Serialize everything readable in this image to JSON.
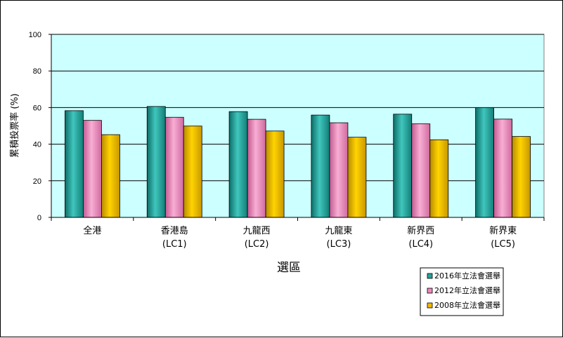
{
  "chart_data": {
    "type": "bar",
    "xlabel": "選區",
    "ylabel": "累積投票率 (%)",
    "ylim": [
      0,
      100
    ],
    "yticks": [
      0,
      20,
      40,
      60,
      80,
      100
    ],
    "grid": true,
    "legend_position": "bottom-right",
    "plot_background": "#ccffff",
    "categories": [
      {
        "line1": "全港",
        "line2": ""
      },
      {
        "line1": "香港島",
        "line2": "(LC1)"
      },
      {
        "line1": "九龍西",
        "line2": "(LC2)"
      },
      {
        "line1": "九龍東",
        "line2": "(LC3)"
      },
      {
        "line1": "新界西",
        "line2": "(LC4)"
      },
      {
        "line1": "新界東",
        "line2": "(LC5)"
      }
    ],
    "series": [
      {
        "name": "2016年立法會選舉",
        "color": "#2aa198",
        "values": [
          58.3,
          60.6,
          57.8,
          55.9,
          56.4,
          60.0
        ]
      },
      {
        "name": "2012年立法會選舉",
        "color": "#ee88bb",
        "values": [
          53.0,
          54.7,
          53.6,
          51.7,
          51.1,
          53.7
        ]
      },
      {
        "name": "2008年立法會選舉",
        "color": "#f0b800",
        "values": [
          45.2,
          49.9,
          47.2,
          43.8,
          42.4,
          44.2
        ]
      }
    ]
  }
}
